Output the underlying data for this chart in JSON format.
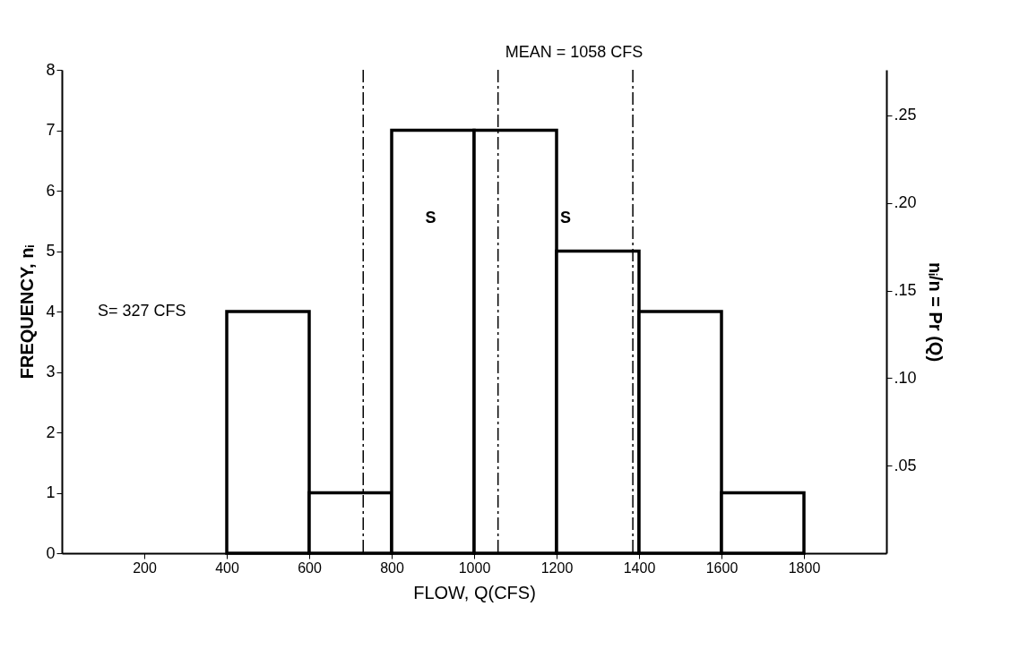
{
  "chart_data": {
    "type": "histogram",
    "bins": [
      400,
      600,
      800,
      1000,
      1200,
      1400,
      1600,
      1800
    ],
    "values": [
      4,
      1,
      7,
      7,
      5,
      4,
      1
    ],
    "color": "#000000",
    "xlabel": "FLOW, Q(CFS)",
    "ylabel": "FREQUENCY, nᵢ",
    "y2label": "nᵢ/n = Pr (Q)",
    "xlim": [
      0,
      2000
    ],
    "xticks": [
      200,
      400,
      600,
      800,
      1000,
      1200,
      1400,
      1600,
      1800
    ],
    "ylim": [
      0,
      8
    ],
    "yticks": [
      0,
      1,
      2,
      3,
      4,
      5,
      6,
      7,
      8
    ],
    "y2lim": [
      0,
      0.276
    ],
    "y2ticks": [
      {
        "value": 0.05,
        "label": ".05"
      },
      {
        "value": 0.1,
        "label": ".10"
      },
      {
        "value": 0.15,
        "label": ".15"
      },
      {
        "value": 0.2,
        "label": ".20"
      },
      {
        "value": 0.25,
        "label": ".25"
      }
    ],
    "ref_lines": [
      {
        "axis": "x",
        "value": 1058,
        "label": "MEAN = 1058 CFS",
        "line_style": "dashed"
      },
      {
        "axis": "x",
        "value": 731,
        "label": null,
        "line_style": "dashed"
      },
      {
        "axis": "x",
        "value": 1385,
        "label": null,
        "line_style": "dashed"
      }
    ],
    "annotations": [
      "S= 327 CFS",
      "S",
      "S"
    ],
    "grid": false
  }
}
